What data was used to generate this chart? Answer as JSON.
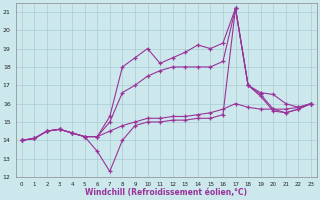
{
  "xlabel": "Windchill (Refroidissement éolien,°C)",
  "background_color": "#cce8ec",
  "line_color": "#993399",
  "grid_color": "#aaccd4",
  "xlim": [
    -0.5,
    23.5
  ],
  "ylim": [
    12,
    21.5
  ],
  "xticks": [
    0,
    1,
    2,
    3,
    4,
    5,
    6,
    7,
    8,
    9,
    10,
    11,
    12,
    13,
    14,
    15,
    16,
    17,
    18,
    19,
    20,
    21,
    22,
    23
  ],
  "yticks": [
    12,
    13,
    14,
    15,
    16,
    17,
    18,
    19,
    20,
    21
  ],
  "series": [
    [
      14.0,
      14.1,
      14.5,
      14.6,
      14.4,
      14.2,
      13.4,
      12.3,
      14.0,
      14.8,
      15.0,
      15.0,
      15.1,
      15.1,
      15.2,
      15.2,
      15.4,
      21.2,
      17.0,
      16.6,
      16.5,
      16.0,
      15.8,
      16.0
    ],
    [
      14.0,
      14.1,
      14.5,
      14.6,
      14.4,
      14.2,
      14.2,
      15.0,
      16.6,
      17.0,
      17.5,
      17.8,
      18.0,
      18.0,
      18.0,
      18.0,
      18.3,
      21.2,
      17.0,
      16.5,
      15.7,
      15.5,
      15.7,
      16.0
    ],
    [
      14.0,
      14.1,
      14.5,
      14.6,
      14.4,
      14.2,
      14.2,
      15.3,
      18.0,
      18.5,
      19.0,
      18.2,
      18.5,
      18.8,
      19.2,
      19.0,
      19.3,
      21.2,
      17.0,
      16.4,
      15.6,
      15.5,
      15.7,
      16.0
    ],
    [
      14.0,
      14.1,
      14.5,
      14.6,
      14.4,
      14.2,
      14.2,
      14.5,
      14.8,
      15.0,
      15.2,
      15.2,
      15.3,
      15.3,
      15.4,
      15.5,
      15.7,
      16.0,
      15.8,
      15.7,
      15.7,
      15.7,
      15.8,
      16.0
    ]
  ]
}
